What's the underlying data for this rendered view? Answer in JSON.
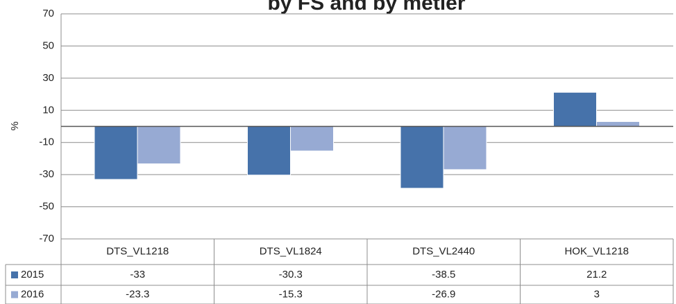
{
  "chart_data": {
    "type": "bar",
    "title": "by FS and by metier",
    "ylabel": "%",
    "categories": [
      "DTS_VL1218",
      "DTS_VL1824",
      "DTS_VL2440",
      "HOK_VL1218"
    ],
    "series": [
      {
        "name": "2015",
        "color": "#4672aa",
        "values": [
          -33,
          -30.3,
          -38.5,
          21.2
        ]
      },
      {
        "name": "2016",
        "color": "#97aad3",
        "values": [
          -23.3,
          -15.3,
          -26.9,
          3
        ]
      }
    ],
    "ylim": [
      -70,
      70
    ],
    "yticks": [
      -70,
      -50,
      -30,
      -10,
      10,
      30,
      50,
      70
    ],
    "grid": true
  }
}
